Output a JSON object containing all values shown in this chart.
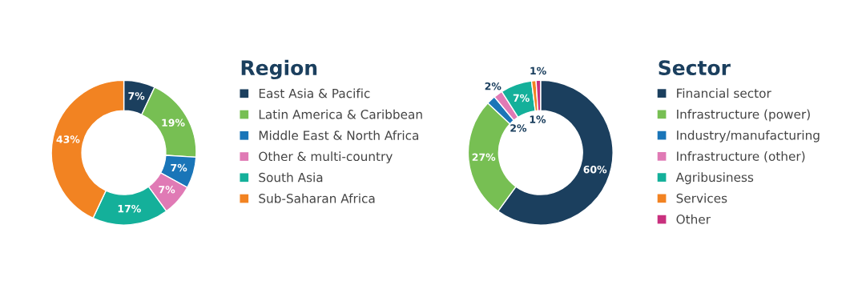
{
  "chart_data": [
    {
      "type": "donut",
      "legend_title": "Region",
      "legend": "right",
      "categories": [
        "East Asia & Pacific",
        "Latin America & Caribbean",
        "Middle East & North Africa",
        "Other & multi-country",
        "South Asia",
        "Sub-Saharan Africa"
      ],
      "values": [
        7,
        19,
        7,
        7,
        17,
        43
      ],
      "value_labels": [
        "7%",
        "19%",
        "7%",
        "7%",
        "17%",
        "43%"
      ],
      "colors": [
        "#1b3f5e",
        "#77bf53",
        "#1a75b8",
        "#e07ab5",
        "#14b09a",
        "#f28322"
      ]
    },
    {
      "type": "donut",
      "legend_title": "Sector",
      "legend": "right",
      "categories": [
        "Financial sector",
        "Infrastructure (power)",
        "Industry/manufacturing",
        "Infrastructure (other)",
        "Agribusiness",
        "Services",
        "Other"
      ],
      "values": [
        60,
        27,
        2,
        2,
        7,
        1,
        1
      ],
      "value_labels": [
        "60%",
        "27%",
        "2%",
        "2%",
        "7%",
        "1%",
        "1%"
      ],
      "colors": [
        "#1b3f5e",
        "#77bf53",
        "#1a75b8",
        "#e07ab5",
        "#14b09a",
        "#f28322",
        "#c9307e"
      ]
    }
  ]
}
